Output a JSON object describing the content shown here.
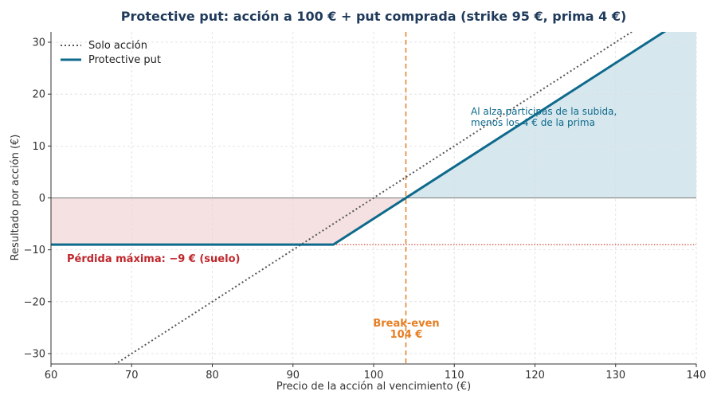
{
  "chart_data": {
    "type": "line",
    "title": "Protective put: acción a 100 € + put comprada (strike 95 €, prima 4 €)",
    "xlabel": "Precio de la acción al vencimiento (€)",
    "ylabel": "Resultado por acción (€)",
    "xlim": [
      60,
      140
    ],
    "ylim": [
      -32,
      32
    ],
    "xticks": [
      60,
      70,
      80,
      90,
      100,
      110,
      120,
      130,
      140
    ],
    "yticks": [
      -30,
      -20,
      -10,
      0,
      10,
      20,
      30
    ],
    "ytick_labels": [
      "−30",
      "−20",
      "−10",
      "0",
      "10",
      "20",
      "30"
    ],
    "grid": true,
    "legend_position": "top-left",
    "series": [
      {
        "name": "Solo acción",
        "style": "dotted",
        "color": "#555555",
        "x": [
          60,
          140
        ],
        "y": [
          -40,
          40
        ]
      },
      {
        "name": "Protective put",
        "style": "solid",
        "color": "#0e6a8c",
        "x": [
          60,
          95,
          140
        ],
        "y": [
          -9,
          -9,
          36
        ]
      }
    ],
    "max_loss": -9,
    "break_even": 104,
    "annotations": {
      "loss_label": "Pérdida máxima: −9 € (suelo)",
      "break_even_line1": "Break-even",
      "break_even_line2": "104 €",
      "upside_line1": "Al alza participas de la subida,",
      "upside_line2": "menos los 4 € de la prima"
    },
    "colors": {
      "protective": "#0e6a8c",
      "stock": "#555555",
      "loss_fill": "#f5e1e1",
      "gain_fill": "#d7e7ee",
      "break_even": "#e67e22",
      "loss_text": "#c0262b",
      "floor_line": "#c0392b",
      "title": "#1f3a5a"
    }
  }
}
